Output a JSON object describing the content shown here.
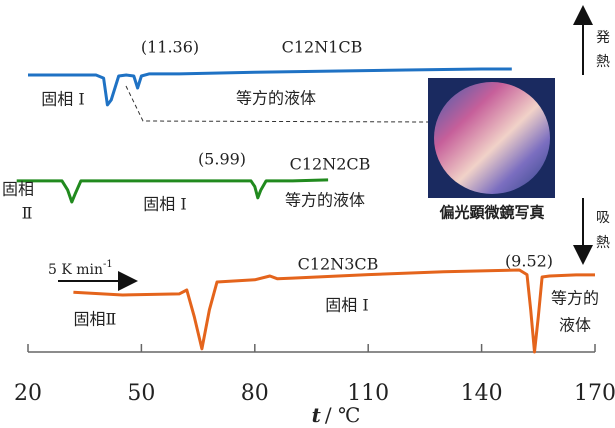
{
  "chart_data": {
    "type": "line",
    "xlabel_var": "t",
    "xlabel_unit": "/ ℃",
    "xlim": [
      20,
      170
    ],
    "xticks": [
      20,
      50,
      80,
      110,
      140,
      170
    ],
    "ylim": [
      0,
      100
    ],
    "series": [
      {
        "name": "C12N1CB",
        "color": "#1f72c4",
        "x": [
          20,
          38,
          40,
          41,
          42,
          44,
          46,
          48,
          49,
          50,
          52,
          60,
          80,
          100,
          120,
          140,
          148
        ],
        "values": [
          78.7,
          78.7,
          77.8,
          70.2,
          71.6,
          78.4,
          78.7,
          78.4,
          75.0,
          78.4,
          79.0,
          79.0,
          79.5,
          79.8,
          80.1,
          80.4,
          80.4
        ]
      },
      {
        "name": "C12N2CB",
        "color": "#218a1e",
        "x": [
          17,
          29,
          30.5,
          31.6,
          32.5,
          34,
          50,
          70,
          79,
          80,
          80.8,
          81.6,
          83,
          90,
          99.4
        ],
        "values": [
          48.6,
          48.6,
          46,
          42.6,
          45,
          48.6,
          48.6,
          48.6,
          48.6,
          47,
          43.8,
          46,
          48.6,
          48.6,
          48.9
        ]
      },
      {
        "name": "C12N3CB",
        "color": "#e4641c",
        "x": [
          32,
          45,
          60,
          62,
          64,
          66,
          68,
          70,
          80,
          84,
          86,
          90,
          110,
          130,
          150,
          152,
          153,
          154,
          155,
          156,
          158,
          165,
          170
        ],
        "values": [
          17.0,
          16.2,
          16.5,
          17.6,
          10,
          0.9,
          12,
          19.9,
          20.5,
          21.6,
          20.8,
          21.0,
          22,
          22.8,
          23.3,
          22,
          12,
          0,
          10,
          21.3,
          21.6,
          21.9,
          21.9
        ]
      }
    ],
    "annotations": [
      "(11.36)",
      "固相 I",
      "等方的液体",
      "(5.99)",
      "固相",
      "Ⅱ",
      "固相 I",
      "等方的液体",
      "(9.52)",
      "固相Ⅱ",
      "固相 I",
      "等方的",
      "液体"
    ],
    "rate": {
      "text": "5 K min",
      "sup": "-1"
    },
    "exo": [
      "発",
      "熱"
    ],
    "endo": [
      "吸",
      "熱"
    ],
    "photo_caption": "偏光顕微鏡写真"
  }
}
